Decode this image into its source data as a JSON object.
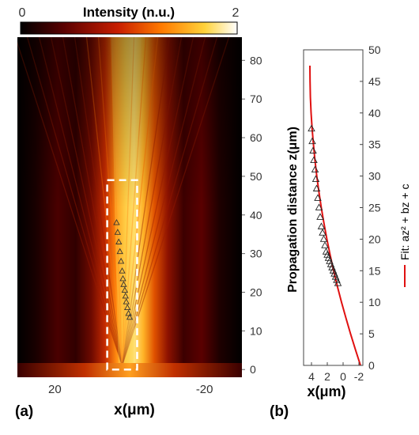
{
  "colors": {
    "colormap": [
      "#000000",
      "#5a0000",
      "#c81e00",
      "#ff7a00",
      "#ffd23a",
      "#ffffff"
    ],
    "fit_line": "#e01010",
    "marker": "#000000",
    "box": "#ffffff"
  },
  "chart_data": [
    {
      "panel_label": "(a)",
      "type": "heatmap",
      "colorbar": {
        "title": "Intensity (n.u.)",
        "min_label": "0",
        "max_label": "2",
        "range": [
          0,
          2
        ]
      },
      "xlabel": "x(μm)",
      "xlim": [
        30,
        -30
      ],
      "x_ticks": [
        "20",
        "-20"
      ],
      "x_tick_values": [
        20,
        -20
      ],
      "ylim": [
        -2,
        86
      ],
      "y_ticks": [
        "0",
        "10",
        "20",
        "30",
        "40",
        "50",
        "60",
        "70",
        "80"
      ],
      "y_tick_values": [
        0,
        10,
        20,
        30,
        40,
        50,
        60,
        70,
        80
      ],
      "dashed_box": {
        "x": [
          6,
          -2
        ],
        "y": [
          0,
          49
        ]
      },
      "markers": {
        "shape": "triangle",
        "x": [
          3.5,
          3.2,
          2.9,
          2.6,
          2.3,
          2.0,
          1.8,
          1.6,
          1.3,
          1.1,
          0.9,
          0.6,
          0.3,
          0.0
        ],
        "y": [
          38,
          35.5,
          33,
          30.5,
          28,
          25.5,
          23.5,
          22,
          20.5,
          19,
          17.5,
          16,
          14.5,
          13.5
        ]
      }
    },
    {
      "panel_label": "(b)",
      "type": "line",
      "xlabel": "x(μm)",
      "ylabel": "Propagation distance  z(μm)",
      "xlim": [
        5,
        -2.5
      ],
      "ylim": [
        0,
        50
      ],
      "x_ticks": [
        "4",
        "2",
        "0",
        "-2"
      ],
      "x_tick_values": [
        4,
        2,
        0,
        -2
      ],
      "y_ticks": [
        "0",
        "5",
        "10",
        "15",
        "20",
        "25",
        "30",
        "35",
        "40",
        "45",
        "50"
      ],
      "y_tick_values": [
        0,
        5,
        10,
        15,
        20,
        25,
        30,
        35,
        40,
        45,
        50
      ],
      "series": [
        {
          "name": "Fit: az² + bz + c",
          "kind": "line",
          "x": [
            -2.2,
            -1.56,
            -0.94,
            -0.36,
            0.2,
            0.72,
            1.2,
            1.64,
            2.05,
            2.42,
            2.76,
            3.06,
            3.33,
            3.56,
            3.75,
            3.92,
            4.05,
            4.14,
            4.18,
            4.2
          ],
          "y": [
            0,
            2.5,
            5,
            7.5,
            10,
            12.5,
            15,
            17.5,
            20,
            22.5,
            25,
            27.5,
            30,
            32.5,
            35,
            37.5,
            40,
            42.5,
            45,
            47.5
          ]
        },
        {
          "name": "",
          "kind": "markers",
          "shape": "triangle",
          "x": [
            4.0,
            3.9,
            3.8,
            3.7,
            3.55,
            3.45,
            3.35,
            3.2,
            3.05,
            2.9,
            2.75,
            2.6,
            2.45,
            2.3,
            2.15,
            2.0,
            1.85,
            1.7,
            1.55,
            1.4,
            1.25,
            1.1,
            0.95,
            0.8,
            0.65
          ],
          "y": [
            37.5,
            35.5,
            34,
            32.5,
            31,
            29.5,
            28,
            26.5,
            25,
            23.5,
            22,
            21,
            20,
            19,
            18,
            17.5,
            17,
            16.5,
            16,
            15.5,
            15,
            14.5,
            14,
            13.5,
            13
          ]
        }
      ]
    }
  ]
}
